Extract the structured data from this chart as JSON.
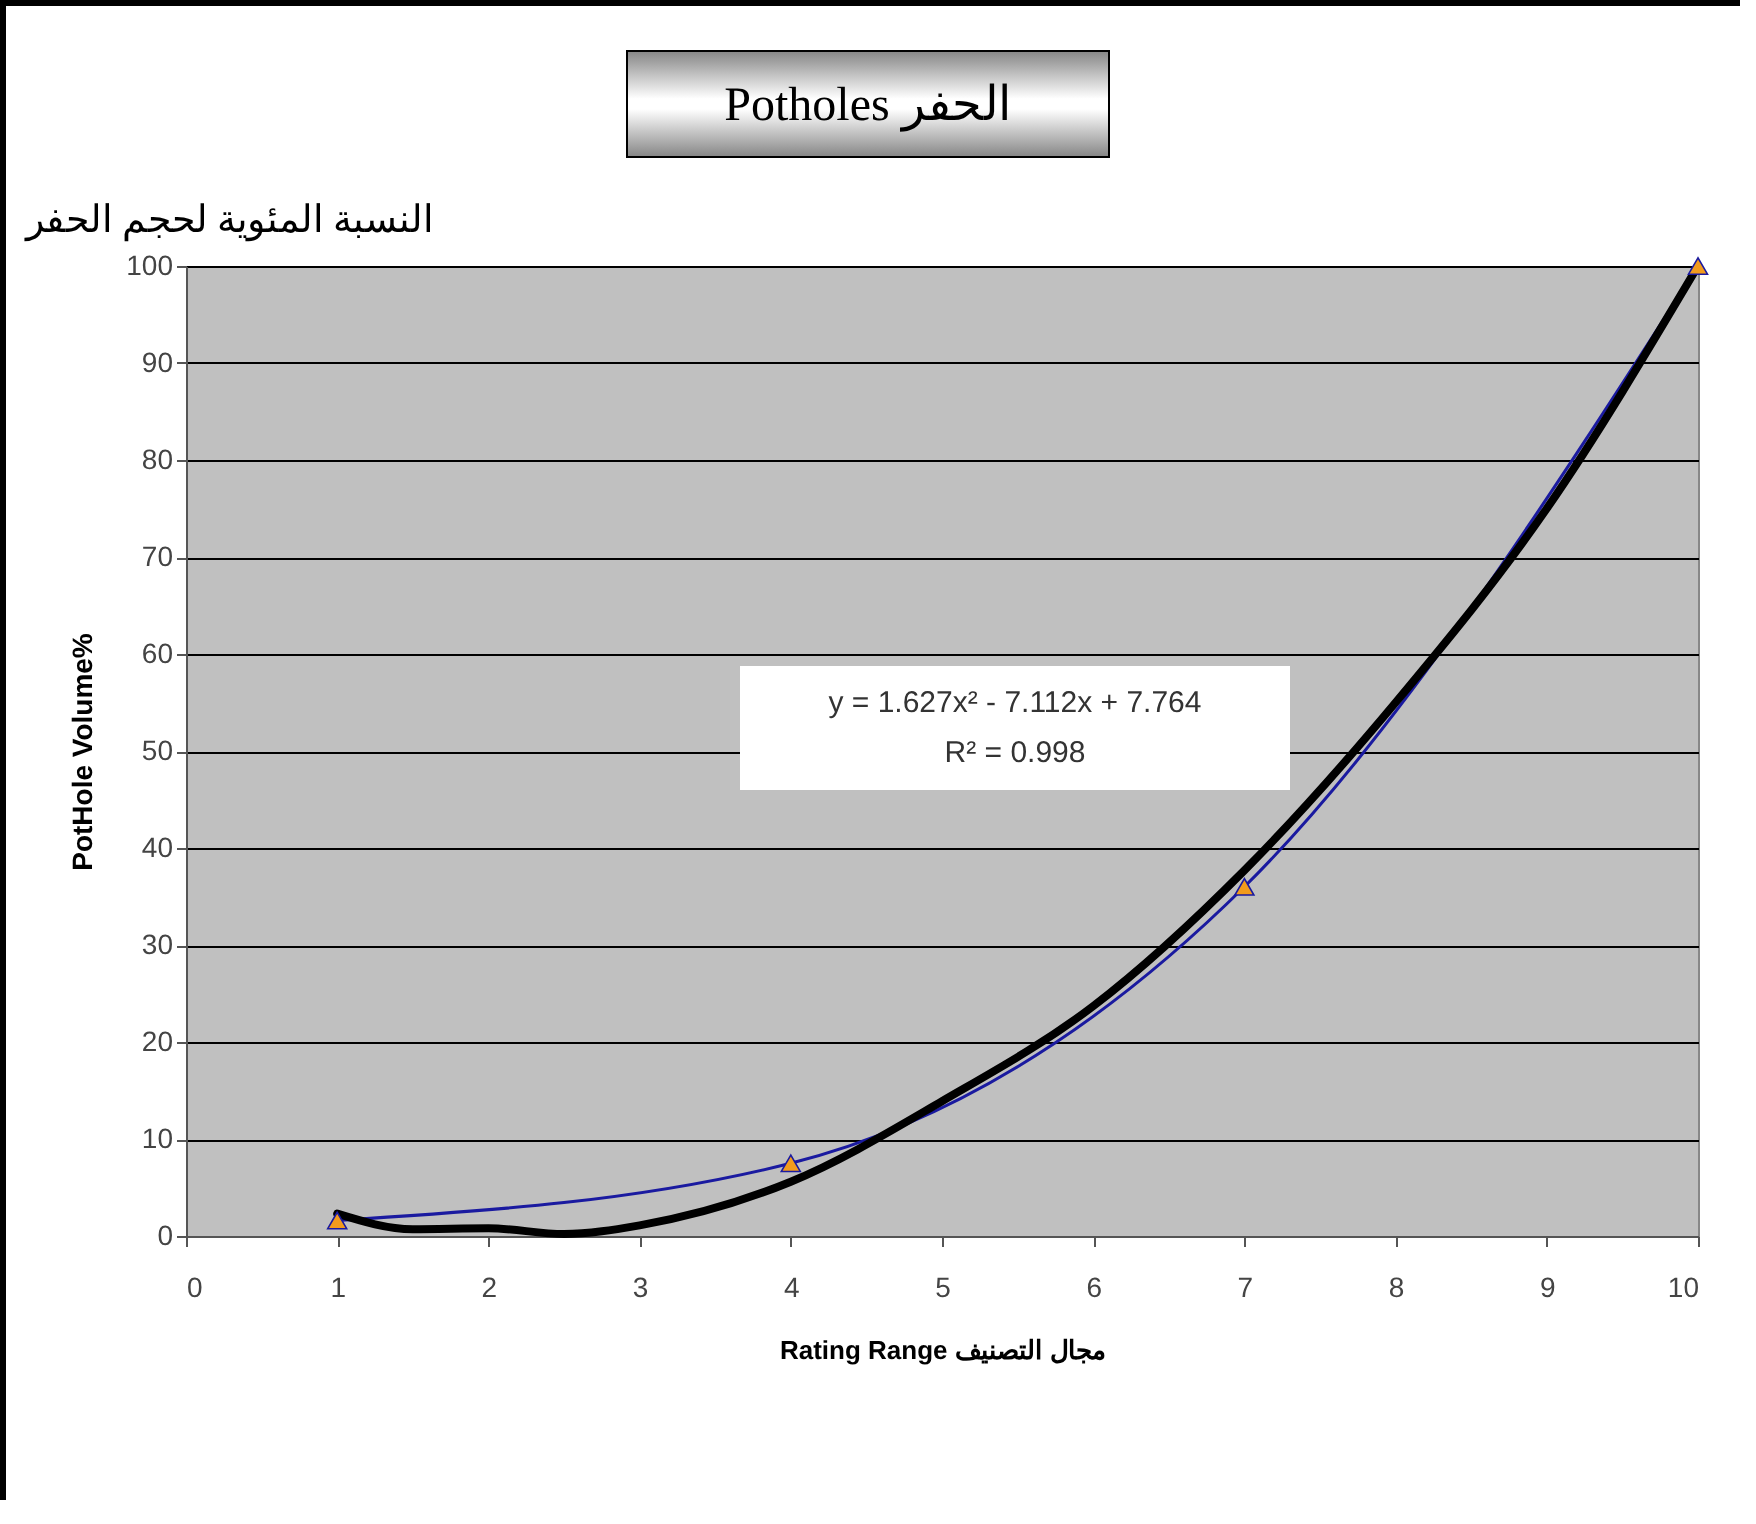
{
  "chart_data": {
    "type": "line",
    "title": "Potholes الحفر",
    "subtitle": "النسبة المئوية لحجم الحفر",
    "xlabel": "Rating Range  مجال التصنيف",
    "ylabel": "PotHole Volume%",
    "annotations": [
      "y = 1.627x² - 7.112x + 7.764",
      "R² = 0.998"
    ],
    "series": [
      {
        "color": "#1a1aa0",
        "x": [
          1,
          4,
          7,
          10
        ],
        "values": [
          1.6,
          7.5,
          36,
          100
        ]
      },
      {
        "type": "line",
        "marker": "none",
        "color": "#000000",
        "x": [
          1,
          1.5,
          2,
          2.5,
          3,
          4,
          5,
          6,
          7,
          8,
          9,
          10
        ],
        "values": [
          2.3,
          0.7,
          0.8,
          0.2,
          1.1,
          5.6,
          13.9,
          23.7,
          37.7,
          55,
          75,
          100
        ]
      }
    ],
    "xlim": [
      0,
      10
    ],
    "xticks": [
      0,
      1,
      2,
      3,
      4,
      5,
      6,
      7,
      8,
      9,
      10
    ],
    "ylim": [
      0,
      100
    ],
    "yticks": [
      0,
      10,
      20,
      30,
      40,
      50,
      60,
      70,
      80,
      90,
      100
    ],
    "grid": "y",
    "marker": "triangle",
    "line_style": "solid"
  }
}
